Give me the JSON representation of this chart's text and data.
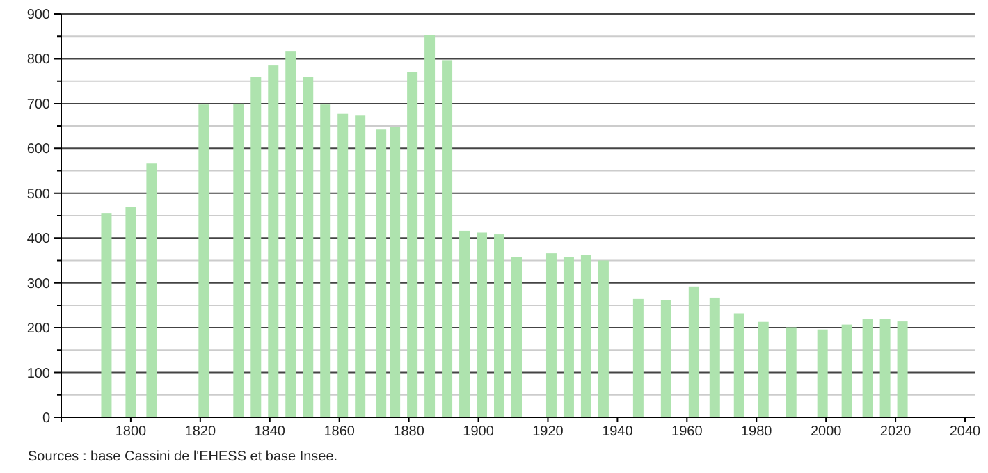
{
  "chart_data": {
    "type": "bar",
    "x": [
      1793,
      1800,
      1806,
      1821,
      1831,
      1836,
      1841,
      1846,
      1851,
      1856,
      1861,
      1866,
      1872,
      1876,
      1881,
      1886,
      1891,
      1896,
      1901,
      1906,
      1911,
      1921,
      1926,
      1931,
      1936,
      1946,
      1954,
      1962,
      1968,
      1975,
      1982,
      1990,
      1999,
      2006,
      2012,
      2017,
      2022
    ],
    "values": [
      456,
      469,
      566,
      698,
      700,
      760,
      785,
      816,
      760,
      698,
      677,
      673,
      642,
      648,
      770,
      853,
      797,
      416,
      412,
      408,
      357,
      366,
      357,
      363,
      350,
      264,
      261,
      292,
      267,
      232,
      213,
      201,
      196,
      207,
      219,
      219,
      214
    ],
    "color": "#aee3ae",
    "xlim": [
      1780,
      2043
    ],
    "xticks": [
      {
        "value": 1780,
        "label": null
      },
      1800,
      1820,
      1840,
      1860,
      1880,
      1900,
      1920,
      1940,
      1960,
      1980,
      2000,
      2020,
      2040
    ],
    "ylim": [
      0,
      900
    ],
    "yticks": [
      0,
      {
        "value": 50,
        "label": null
      },
      100,
      {
        "value": 150,
        "label": null
      },
      200,
      {
        "value": 250,
        "label": null
      },
      300,
      {
        "value": 350,
        "label": null
      },
      400,
      {
        "value": 450,
        "label": null
      },
      500,
      {
        "value": 550,
        "label": null
      },
      600,
      {
        "value": 650,
        "label": null
      },
      700,
      {
        "value": 750,
        "label": null
      },
      800,
      {
        "value": 850,
        "label": null
      },
      900
    ],
    "grid": "y",
    "annotations": [
      "Sources : base Cassini de l'EHESS et base Insee."
    ]
  }
}
